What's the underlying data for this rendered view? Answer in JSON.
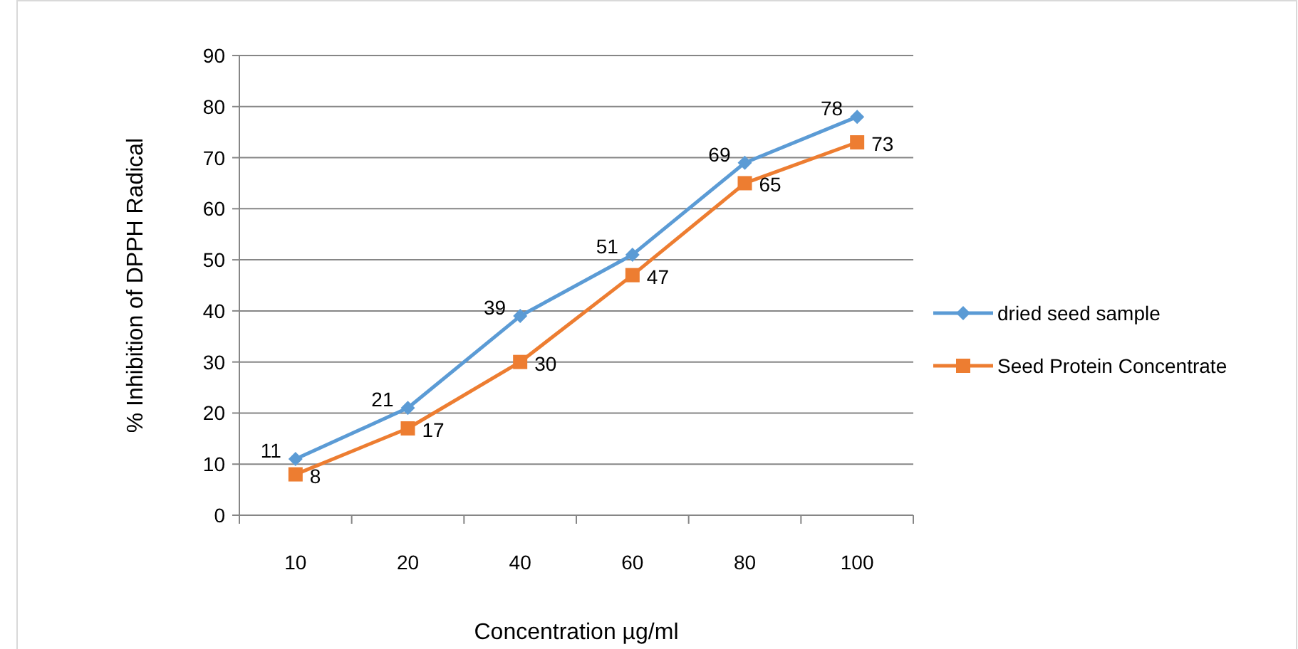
{
  "chart_data": {
    "type": "line",
    "xlabel": "Concentration µg/ml",
    "ylabel": "% Inhibition of DPPH Radical",
    "categories": [
      "10",
      "20",
      "40",
      "60",
      "80",
      "100"
    ],
    "series": [
      {
        "name": "dried seed sample",
        "color": "#5b9bd5",
        "marker": "diamond",
        "values": [
          11,
          21,
          39,
          51,
          69,
          78
        ]
      },
      {
        "name": "Seed Protein Concentrate",
        "color": "#ed7d31",
        "marker": "square",
        "values": [
          8,
          17,
          30,
          47,
          65,
          73
        ]
      }
    ],
    "ylim": [
      0,
      90
    ],
    "yticks": [
      0,
      10,
      20,
      30,
      40,
      50,
      60,
      70,
      80,
      90
    ],
    "grid": "y",
    "legend": "right",
    "data_labels": true
  }
}
